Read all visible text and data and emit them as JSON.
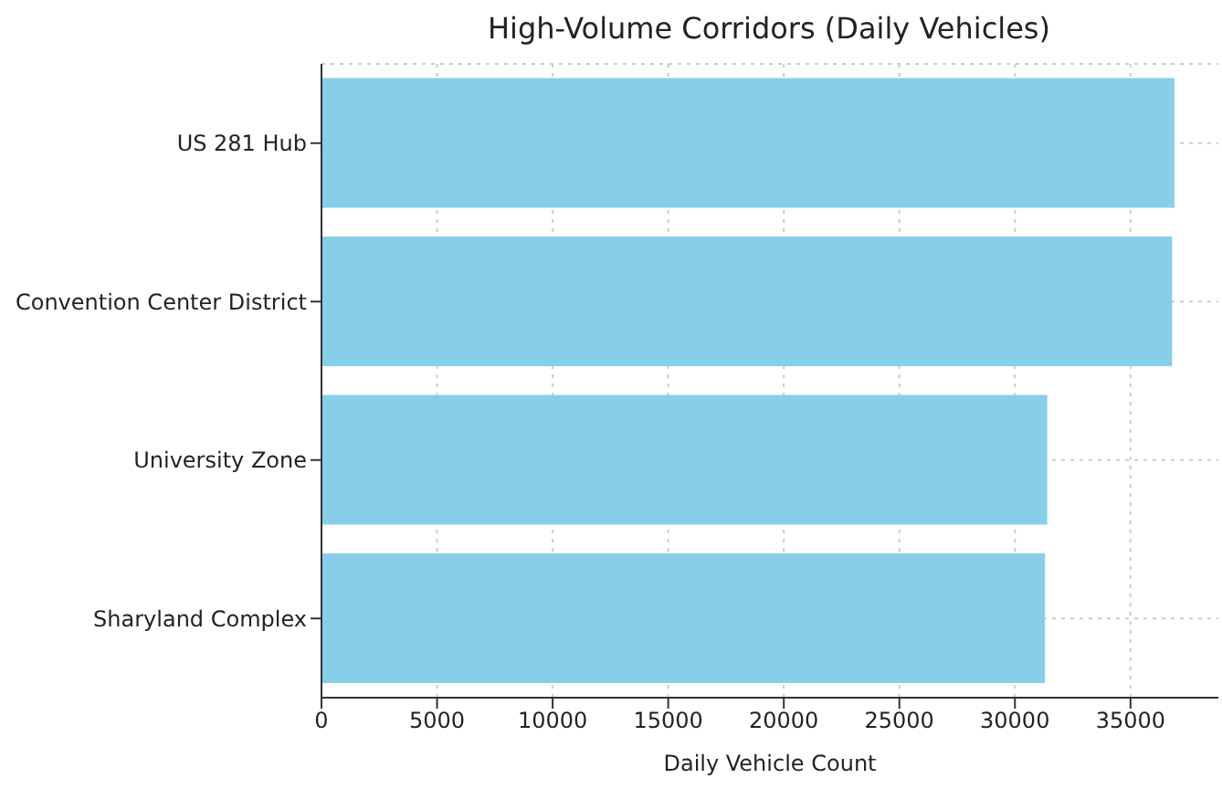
{
  "chart_data": {
    "type": "bar",
    "orientation": "horizontal",
    "title": "High-Volume Corridors (Daily Vehicles)",
    "xlabel": "Daily Vehicle Count",
    "categories": [
      "US 281 Hub",
      "Convention Center District",
      "University Zone",
      "Sharyland Complex"
    ],
    "values": [
      36900,
      36800,
      31400,
      31300
    ],
    "color": "#87ceeb",
    "xlim": [
      0,
      38800
    ],
    "xticks": [
      0,
      5000,
      10000,
      15000,
      20000,
      25000,
      30000,
      35000
    ],
    "grid": true
  }
}
